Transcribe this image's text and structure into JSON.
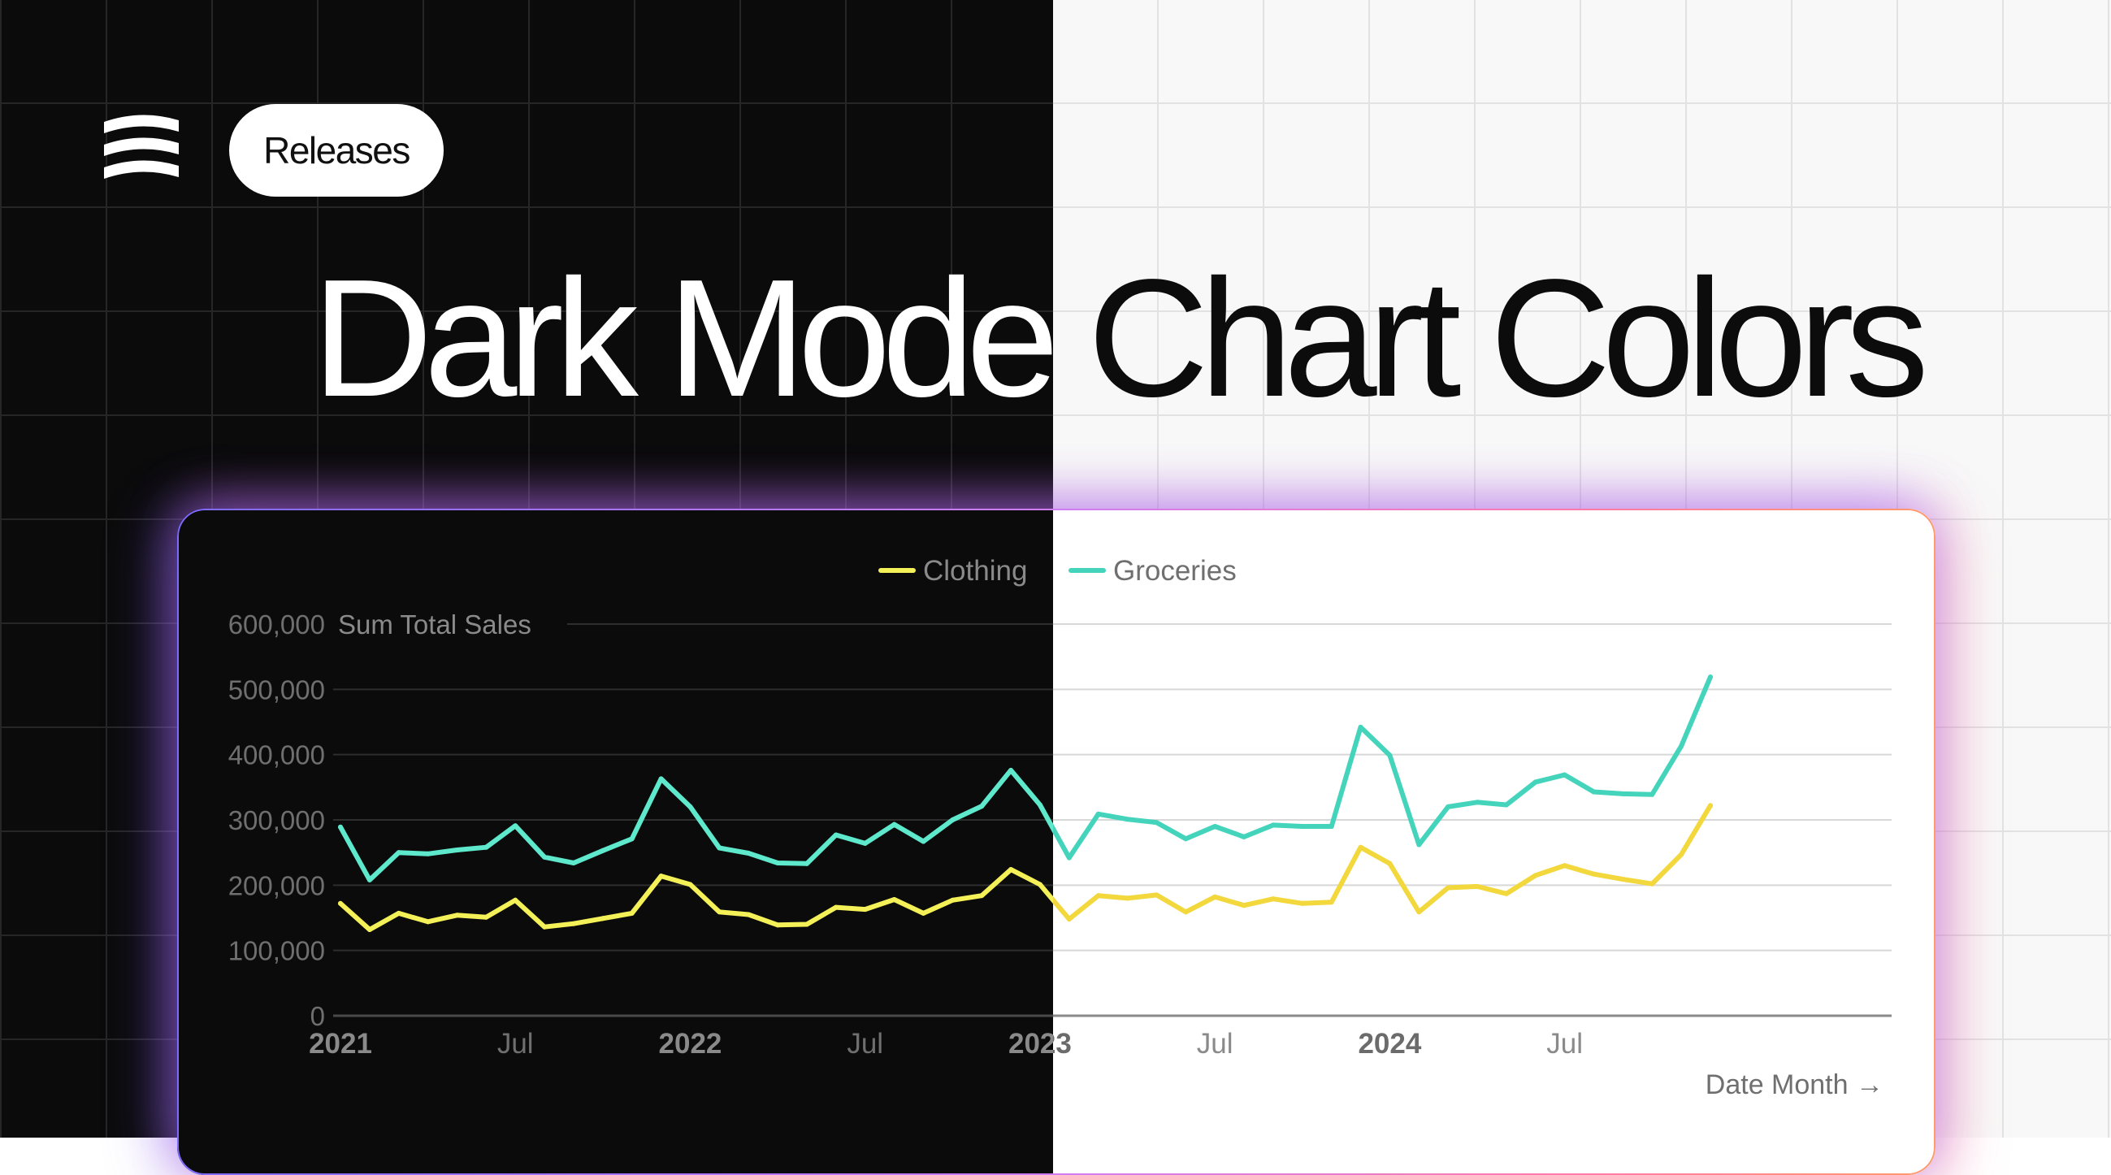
{
  "badge": {
    "label": "Releases"
  },
  "headline": {
    "text": "Dark Mode Chart Colors"
  },
  "colors": {
    "dark_bg": "#0b0b0b",
    "light_bg": "#f8f8f8",
    "clothing_dark": "#f4f057",
    "clothing_light": "#f2d83c",
    "groceries_dark": "#5ee8cc",
    "groceries_light": "#44d4bb"
  },
  "icons": {
    "logo": "wave-stack-logo",
    "axis_arrow": "arrow-right-icon"
  },
  "chart_data": {
    "type": "line",
    "legend_position": "top-center",
    "grid": true,
    "ylabel": "Sum Total Sales",
    "xlabel": "Date Month →",
    "ylim": [
      0,
      600000
    ],
    "yticks": [
      "0",
      "100,000",
      "200,000",
      "300,000",
      "400,000",
      "500,000",
      "600,000"
    ],
    "xticks": [
      {
        "label": "2021",
        "index": 0,
        "bold": true
      },
      {
        "label": "Jul",
        "index": 6,
        "bold": false
      },
      {
        "label": "2022",
        "index": 12,
        "bold": true
      },
      {
        "label": "Jul",
        "index": 18,
        "bold": false
      },
      {
        "label": "2023",
        "index": 24,
        "bold": true
      },
      {
        "label": "Jul",
        "index": 30,
        "bold": false
      },
      {
        "label": "2024",
        "index": 36,
        "bold": true
      },
      {
        "label": "Jul",
        "index": 42,
        "bold": false
      }
    ],
    "x": [
      "2021-01",
      "2021-02",
      "2021-03",
      "2021-04",
      "2021-05",
      "2021-06",
      "2021-07",
      "2021-08",
      "2021-09",
      "2021-10",
      "2021-11",
      "2021-12",
      "2022-01",
      "2022-02",
      "2022-03",
      "2022-04",
      "2022-05",
      "2022-06",
      "2022-07",
      "2022-08",
      "2022-09",
      "2022-10",
      "2022-11",
      "2022-12",
      "2023-01",
      "2023-02",
      "2023-03",
      "2023-04",
      "2023-05",
      "2023-06",
      "2023-07",
      "2023-08",
      "2023-09",
      "2023-10",
      "2023-11",
      "2023-12",
      "2024-01",
      "2024-02",
      "2024-03",
      "2024-04",
      "2024-05",
      "2024-06",
      "2024-07",
      "2024-08",
      "2024-09",
      "2024-10",
      "2024-11",
      "2024-12"
    ],
    "series": [
      {
        "name": "Clothing",
        "values": [
          172000,
          132000,
          157000,
          144000,
          154000,
          151000,
          177000,
          136000,
          141000,
          149000,
          157000,
          214000,
          201000,
          159000,
          155000,
          139000,
          140000,
          166000,
          163000,
          178000,
          157000,
          177000,
          184000,
          224000,
          201000,
          148000,
          184000,
          180000,
          185000,
          159000,
          182000,
          169000,
          179000,
          172000,
          174000,
          258000,
          233000,
          159000,
          196000,
          198000,
          187000,
          215000,
          230000,
          217000,
          209000,
          202000,
          247000,
          322000
        ]
      },
      {
        "name": "Groceries",
        "values": [
          289000,
          208000,
          250000,
          248000,
          254000,
          258000,
          291000,
          243000,
          234000,
          253000,
          271000,
          363000,
          320000,
          257000,
          249000,
          234000,
          233000,
          277000,
          264000,
          293000,
          267000,
          300000,
          321000,
          376000,
          323000,
          242000,
          309000,
          301000,
          296000,
          271000,
          290000,
          274000,
          292000,
          290000,
          290000,
          442000,
          399000,
          262000,
          320000,
          327000,
          323000,
          358000,
          369000,
          343000,
          340000,
          339000,
          413000,
          519000
        ]
      }
    ]
  }
}
